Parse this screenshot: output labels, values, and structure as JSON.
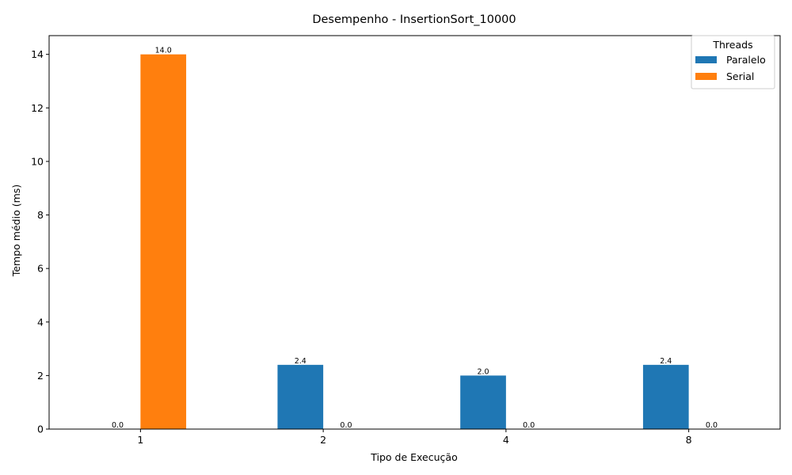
{
  "chart_data": {
    "type": "bar",
    "title": "Desempenho - InsertionSort_10000",
    "xlabel": "Tipo de Execução",
    "ylabel": "Tempo médio (ms)",
    "categories": [
      "1",
      "2",
      "4",
      "8"
    ],
    "ylim": [
      0,
      14.7
    ],
    "yticks": [
      "0",
      "2",
      "4",
      "6",
      "8",
      "10",
      "12",
      "14"
    ],
    "legend_title": "Threads",
    "legend_position": "top-right",
    "grid": false,
    "series": [
      {
        "name": "Paralelo",
        "color": "#1f77b4",
        "values": [
          0.0,
          2.4,
          2.0,
          2.4
        ],
        "labels": [
          "0.0",
          "2.4",
          "2.0",
          "2.4"
        ]
      },
      {
        "name": "Serial",
        "color": "#ff7f0e",
        "values": [
          14.0,
          0.0,
          0.0,
          0.0
        ],
        "labels": [
          "14.0",
          "0.0",
          "0.0",
          "0.0"
        ]
      }
    ]
  }
}
